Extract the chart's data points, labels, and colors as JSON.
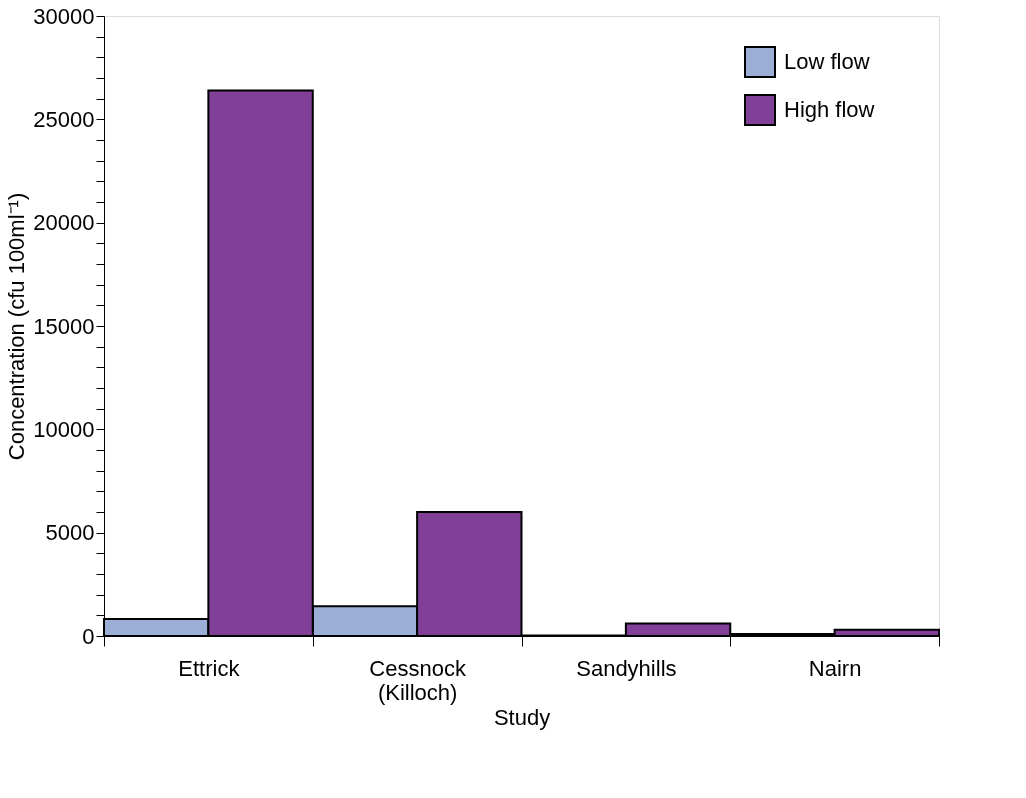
{
  "chart_data": {
    "type": "bar",
    "xlabel": "Study",
    "ylabel": "Concentration (cfu 100ml⁻¹)",
    "categories": [
      "Ettrick",
      "Cessnock (Killoch)",
      "Sandyhills",
      "Nairn"
    ],
    "series": [
      {
        "name": "Low flow",
        "color": "#9bafd6",
        "values": [
          820,
          1440,
          30,
          100
        ]
      },
      {
        "name": "High flow",
        "color": "#823f98",
        "values": [
          26400,
          6000,
          600,
          300
        ]
      }
    ],
    "ylim": [
      0,
      30000
    ],
    "yticks": [
      0,
      {
        "value": 1000,
        "label": null
      },
      {
        "value": 2000,
        "label": null
      },
      {
        "value": 3000,
        "label": null
      },
      {
        "value": 4000,
        "label": null
      },
      5000,
      {
        "value": 6000,
        "label": null
      },
      {
        "value": 7000,
        "label": null
      },
      {
        "value": 8000,
        "label": null
      },
      {
        "value": 9000,
        "label": null
      },
      10000,
      {
        "value": 11000,
        "label": null
      },
      {
        "value": 12000,
        "label": null
      },
      {
        "value": 13000,
        "label": null
      },
      {
        "value": 14000,
        "label": null
      },
      15000,
      {
        "value": 16000,
        "label": null
      },
      {
        "value": 17000,
        "label": null
      },
      {
        "value": 18000,
        "label": null
      },
      {
        "value": 19000,
        "label": null
      },
      20000,
      {
        "value": 21000,
        "label": null
      },
      {
        "value": 22000,
        "label": null
      },
      {
        "value": 23000,
        "label": null
      },
      {
        "value": 24000,
        "label": null
      },
      25000,
      {
        "value": 26000,
        "label": null
      },
      {
        "value": 27000,
        "label": null
      },
      {
        "value": 28000,
        "label": null
      },
      {
        "value": 29000,
        "label": null
      },
      30000
    ],
    "grid": false,
    "legend": "top right"
  }
}
